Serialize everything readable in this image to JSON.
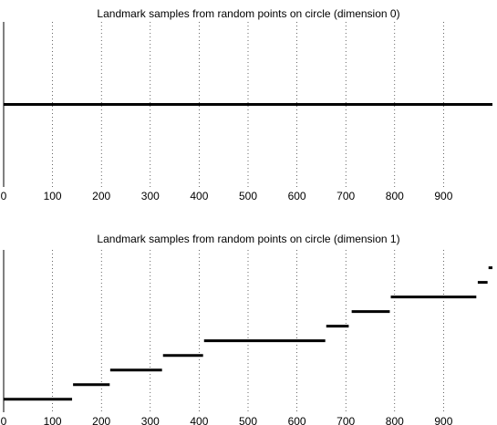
{
  "chart_data": [
    {
      "type": "barcode",
      "title": "Landmark samples from random points on circle (dimension 0)",
      "xlim": [
        0,
        1000
      ],
      "xticks": [
        0,
        100,
        200,
        300,
        400,
        500,
        600,
        700,
        800,
        900
      ],
      "grid": "vertical-dotted",
      "intervals": [
        {
          "start": 0,
          "end": 1000,
          "level": 0.5
        }
      ]
    },
    {
      "type": "barcode",
      "title": "Landmark samples from random points on circle (dimension 1)",
      "xlim": [
        0,
        1000
      ],
      "xticks": [
        0,
        100,
        200,
        300,
        400,
        500,
        600,
        700,
        800,
        900
      ],
      "grid": "vertical-dotted",
      "intervals": [
        {
          "start": 0,
          "end": 140,
          "level": 0.08
        },
        {
          "start": 142,
          "end": 217,
          "level": 0.17
        },
        {
          "start": 218,
          "end": 324,
          "level": 0.26
        },
        {
          "start": 326,
          "end": 408,
          "level": 0.35
        },
        {
          "start": 410,
          "end": 658,
          "level": 0.44
        },
        {
          "start": 660,
          "end": 706,
          "level": 0.53
        },
        {
          "start": 712,
          "end": 790,
          "level": 0.62
        },
        {
          "start": 792,
          "end": 967,
          "level": 0.71
        },
        {
          "start": 970,
          "end": 990,
          "level": 0.8
        },
        {
          "start": 992,
          "end": 1000,
          "level": 0.89
        }
      ]
    }
  ]
}
